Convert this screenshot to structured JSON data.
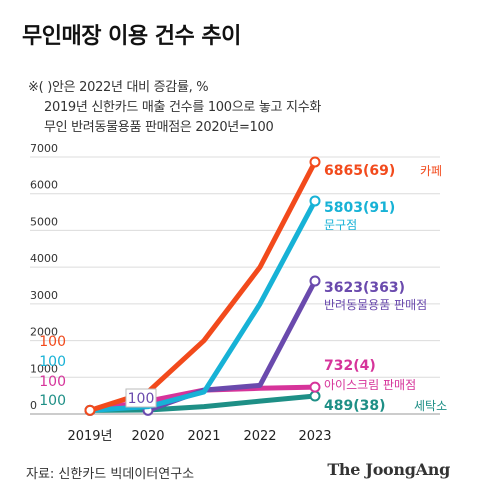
{
  "header": {
    "title": "무인매장 이용 건수 추이",
    "notes": [
      "※( )안은 2022년 대비 증감률, %",
      "2019년 신한카드 매출 건수를 100으로 놓고 지수화",
      "무인 반려동물용품 판매점은 2020년=100"
    ]
  },
  "footer": {
    "source": "자료: 신한카드 빅데이터연구소",
    "brand": "The JoongAng"
  },
  "chart_data": {
    "type": "line",
    "title": "무인매장 이용 건수 추이",
    "xlabel": "",
    "ylabel": "",
    "x": [
      "2019년",
      "2020",
      "2021",
      "2022",
      "2023"
    ],
    "ylim": [
      0,
      7000
    ],
    "y_ticks": [
      0,
      1000,
      2000,
      3000,
      4000,
      5000,
      6000,
      7000
    ],
    "grid": true,
    "base_labels": [
      "100",
      "100",
      "100",
      "100"
    ],
    "base_colors": [
      "#f24a1c",
      "#17b2d6",
      "#d6349a",
      "#1e8f86"
    ],
    "series": [
      {
        "name": "카페",
        "values": [
          100,
          600,
          2000,
          4000,
          6865
        ],
        "value_label": "6865(69)",
        "color": "#f24a1c"
      },
      {
        "name": "문구점",
        "values": [
          100,
          200,
          600,
          3000,
          5803
        ],
        "value_label": "5803(91)",
        "color": "#17b2d6"
      },
      {
        "name": "반려동물용품 판매점",
        "values": [
          null,
          100,
          650,
          780,
          3623
        ],
        "value_label": "3623(363)",
        "color": "#6a4aad",
        "start_label": "100"
      },
      {
        "name": "아이스크림 판매점",
        "values": [
          100,
          350,
          650,
          700,
          732
        ],
        "value_label": "732(4)",
        "color": "#d6349a"
      },
      {
        "name": "세탁소",
        "values": [
          100,
          110,
          200,
          350,
          489
        ],
        "value_label": "489(38)",
        "color": "#1e8f86"
      }
    ]
  }
}
